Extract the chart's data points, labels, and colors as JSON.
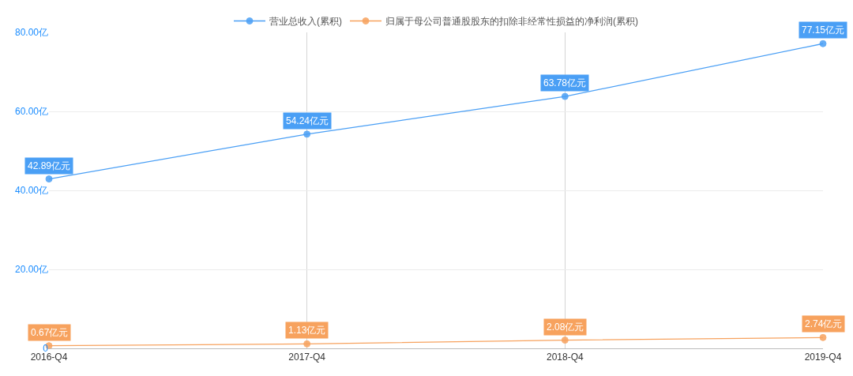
{
  "chart_data": {
    "type": "line",
    "categories": [
      "2016-Q4",
      "2017-Q4",
      "2018-Q4",
      "2019-Q4"
    ],
    "series": [
      {
        "name": "营业总收入(累积)",
        "color": "#4a9ff5",
        "values": [
          42.89,
          54.24,
          63.78,
          77.15
        ],
        "value_labels": [
          "42.89亿元",
          "54.24亿元",
          "63.78亿元",
          "77.15亿元"
        ]
      },
      {
        "name": "归属于母公司普通股股东的扣除非经常性损益的净利润(累积)",
        "color": "#f7a25e",
        "values": [
          0.67,
          1.13,
          2.08,
          2.74
        ],
        "value_labels": [
          "0.67亿元",
          "1.13亿元",
          "2.08亿元",
          "2.74亿元"
        ]
      }
    ],
    "ylim": [
      0,
      80
    ],
    "yticks": [
      0,
      {
        "value": 20,
        "label": "20.00亿"
      },
      {
        "value": 40,
        "label": "40.00亿"
      },
      {
        "value": 60,
        "label": "60.00亿"
      },
      {
        "value": 80,
        "label": "80.00亿"
      }
    ],
    "grid": true,
    "legend": "top",
    "marker": "circle"
  }
}
